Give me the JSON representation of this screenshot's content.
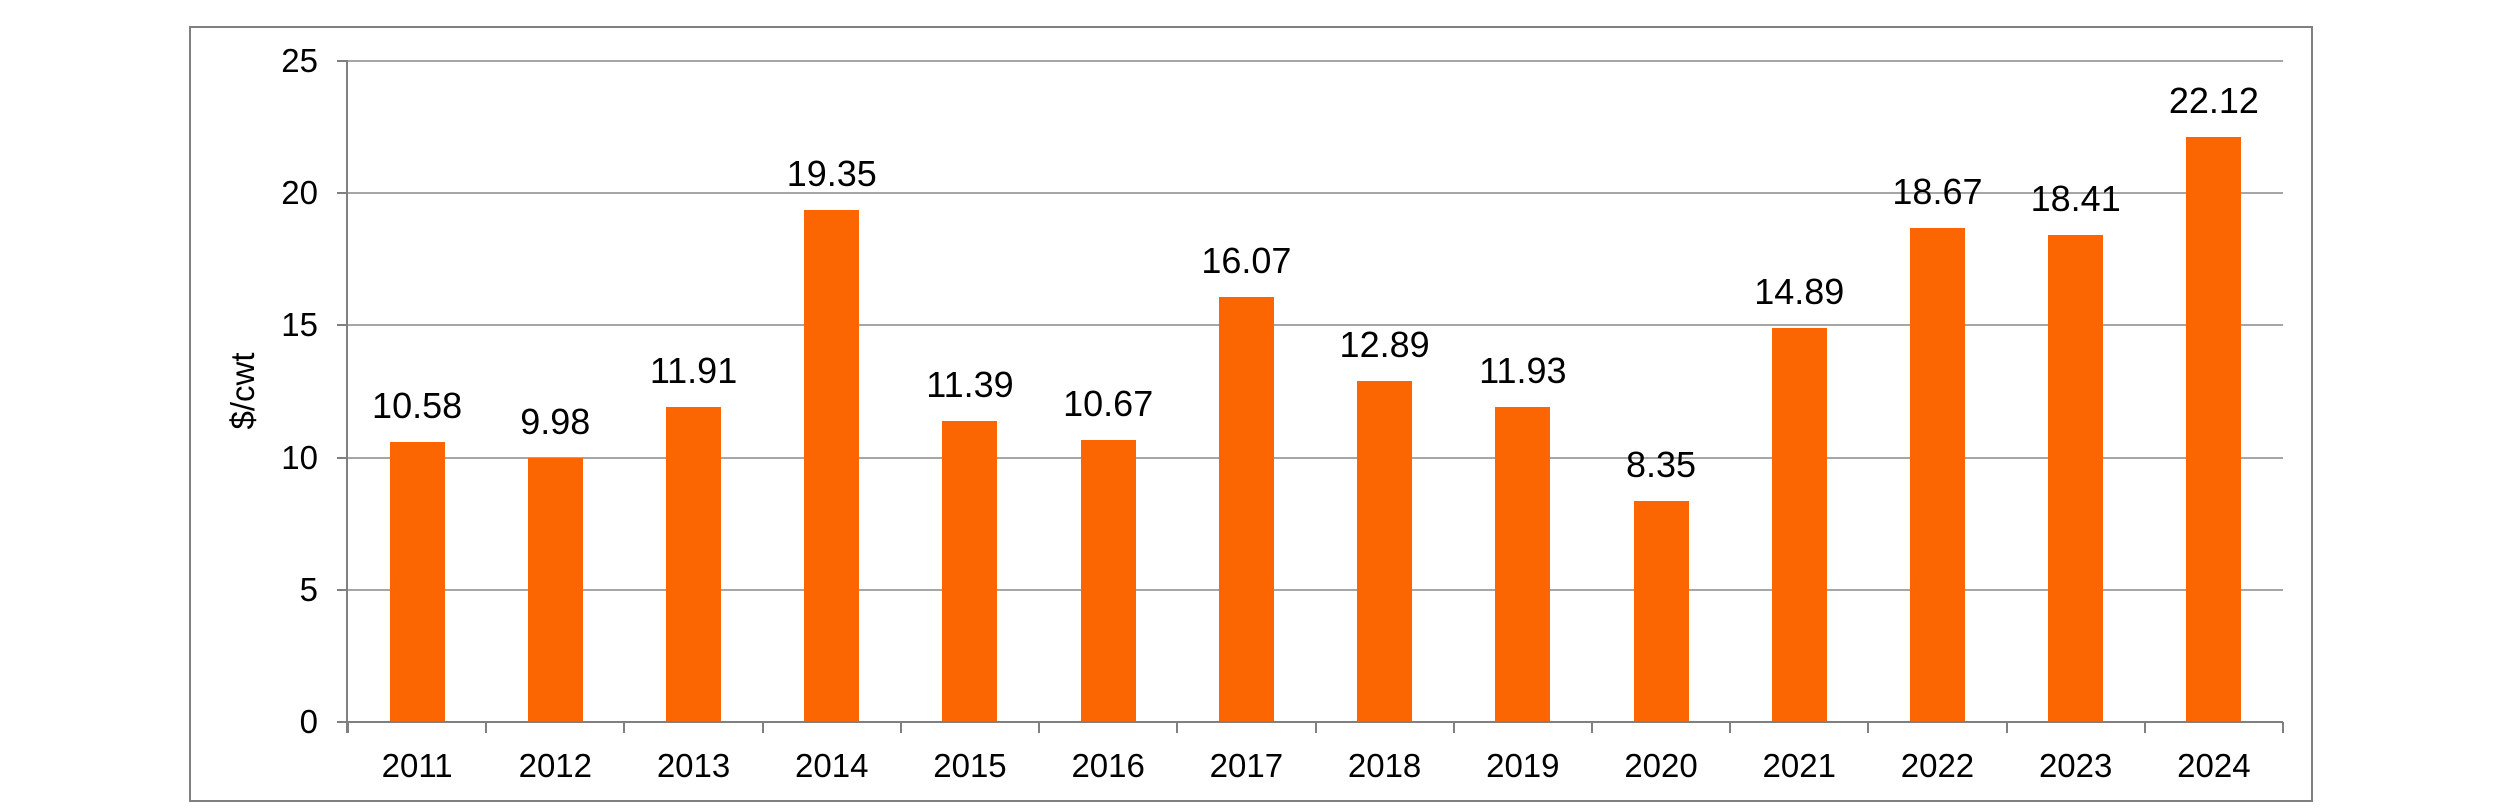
{
  "chart_data": {
    "type": "bar",
    "title": "",
    "xlabel": "",
    "ylabel": "$/cwt",
    "categories": [
      "2011",
      "2012",
      "2013",
      "2014",
      "2015",
      "2016",
      "2017",
      "2018",
      "2019",
      "2020",
      "2021",
      "2022",
      "2023",
      "2024"
    ],
    "values": [
      10.58,
      9.98,
      11.91,
      19.35,
      11.39,
      10.67,
      16.07,
      12.89,
      11.93,
      8.35,
      14.89,
      18.67,
      18.41,
      22.12
    ],
    "data_labels": [
      "10.58",
      "9.98",
      "11.91",
      "19.35",
      "11.39",
      "10.67",
      "16.07",
      "12.89",
      "11.93",
      "8.35",
      "14.89",
      "18.67",
      "18.41",
      "22.12"
    ],
    "ylim": [
      0,
      25
    ],
    "yticks": [
      0,
      5,
      10,
      15,
      20,
      25
    ],
    "grid": "horizontal",
    "legend": "none",
    "colors": {
      "bar": "#FC6602",
      "gridline": "#A6A6A6",
      "axis": "#808080",
      "frame_border": "#808080",
      "text": "#000000",
      "background": "#FFFFFF"
    }
  }
}
